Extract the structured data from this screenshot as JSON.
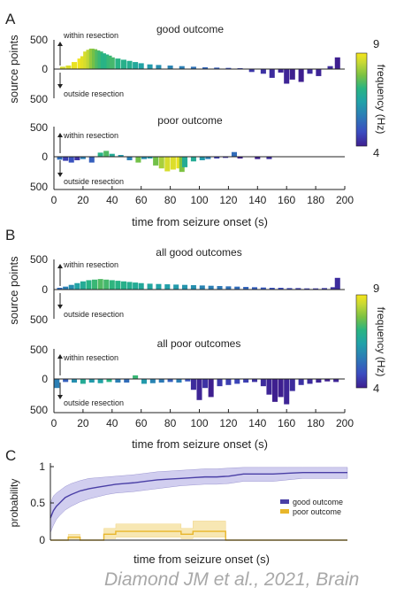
{
  "colors": {
    "viridis": [
      "#3e1f8f",
      "#3b4cc0",
      "#2c7bb6",
      "#21a2a8",
      "#29b482",
      "#7ac143",
      "#c8d935",
      "#f6e51a"
    ],
    "good_line": "#4a3fa6",
    "good_band": "#c9c5ec",
    "poor_line": "#e8b62b",
    "poor_band": "#f6e3a6",
    "axis": "#222222"
  },
  "panels": {
    "A": {
      "letter": "A",
      "xlabel": "time from seizure onset (s)",
      "ylabel": "source points",
      "xticks": [
        "0",
        "20",
        "40",
        "60",
        "80",
        "100",
        "120",
        "140",
        "160",
        "180",
        "200"
      ],
      "colorbar": {
        "label": "frequency (Hz)",
        "max": "9",
        "min": "4"
      }
    },
    "B": {
      "letter": "B",
      "xlabel": "time from seizure onset (s)",
      "ylabel": "source points",
      "xticks": [
        "0",
        "20",
        "40",
        "60",
        "80",
        "100",
        "120",
        "140",
        "160",
        "180",
        "200"
      ],
      "colorbar": {
        "label": "frequency (Hz)",
        "max": "9",
        "min": "4"
      }
    },
    "C": {
      "letter": "C",
      "xlabel": "time from seizure onset (s)",
      "ylabel": "probability",
      "yticks": [
        "0",
        "0.5",
        "1"
      ],
      "legend": [
        "good outcome",
        "poor outcome"
      ]
    }
  },
  "subplot_text": {
    "within": "within resection",
    "outside": "outside resection",
    "yticks": [
      "500",
      "0",
      "500"
    ]
  },
  "citation": "Diamond JM et al., 2021, Brain",
  "chart_data": [
    {
      "type": "bar",
      "panel": "A",
      "title": "good outcome",
      "xlabel": "time from seizure onset (s)",
      "ylabel": "source points",
      "xlim": [
        0,
        200
      ],
      "ylim": [
        -500,
        500
      ],
      "color_scale": {
        "label": "frequency (Hz)",
        "min": 4,
        "max": 9
      },
      "x": [
        6,
        10,
        14,
        18,
        20,
        22,
        24,
        26,
        28,
        30,
        32,
        34,
        36,
        38,
        40,
        44,
        48,
        52,
        56,
        60,
        66,
        72,
        80,
        88,
        96,
        104,
        112,
        120,
        128,
        136,
        144,
        150,
        156,
        160,
        164,
        170,
        176,
        182,
        190,
        195
      ],
      "y": [
        40,
        60,
        120,
        180,
        220,
        300,
        330,
        350,
        340,
        320,
        300,
        270,
        250,
        230,
        200,
        180,
        160,
        140,
        120,
        100,
        80,
        70,
        60,
        50,
        40,
        30,
        25,
        20,
        15,
        -50,
        -80,
        -150,
        -60,
        -250,
        -180,
        -220,
        -80,
        -120,
        50,
        200
      ],
      "freq": [
        8.5,
        8.6,
        8.8,
        8.9,
        8.7,
        8.5,
        8.2,
        7.8,
        7.5,
        7.2,
        7.0,
        6.8,
        6.8,
        7.0,
        7.1,
        6.8,
        6.7,
        6.6,
        6.4,
        6.2,
        6.0,
        5.8,
        5.6,
        5.5,
        5.3,
        5.1,
        5.0,
        4.8,
        4.6,
        4.4,
        4.3,
        4.2,
        4.1,
        4.1,
        4.0,
        4.0,
        4.2,
        4.1,
        4.2,
        4.0
      ]
    },
    {
      "type": "bar",
      "panel": "A",
      "title": "poor outcome",
      "xlabel": "time from seizure onset (s)",
      "ylabel": "source points",
      "xlim": [
        0,
        200
      ],
      "ylim": [
        -500,
        500
      ],
      "color_scale": {
        "label": "frequency (Hz)",
        "min": 4,
        "max": 9
      },
      "x": [
        4,
        8,
        12,
        16,
        20,
        26,
        32,
        36,
        40,
        46,
        52,
        58,
        62,
        66,
        70,
        74,
        78,
        82,
        86,
        88,
        90,
        96,
        102,
        106,
        112,
        118,
        124,
        128,
        140,
        148
      ],
      "y": [
        -50,
        -70,
        -100,
        -60,
        -40,
        -100,
        70,
        100,
        50,
        30,
        -60,
        -100,
        -40,
        -30,
        -150,
        -200,
        -250,
        -220,
        -200,
        -260,
        -180,
        -80,
        -60,
        -40,
        -30,
        -20,
        80,
        -30,
        -40,
        -40
      ],
      "freq": [
        5.2,
        4.5,
        4.8,
        4.3,
        5.5,
        5.0,
        6.8,
        7.2,
        6.5,
        6.0,
        5.5,
        7.5,
        5.8,
        6.0,
        7.5,
        8.0,
        8.5,
        8.6,
        8.8,
        7.6,
        6.5,
        6.5,
        6.0,
        5.5,
        4.5,
        4.3,
        5.2,
        4.0,
        4.0,
        4.2
      ]
    },
    {
      "type": "bar",
      "panel": "B",
      "title": "all good outcomes",
      "xlabel": "time from seizure onset (s)",
      "ylabel": "source points",
      "xlim": [
        0,
        200
      ],
      "ylim": [
        -500,
        500
      ],
      "color_scale": {
        "label": "frequency (Hz)",
        "min": 4,
        "max": 9
      },
      "x": [
        4,
        8,
        12,
        16,
        20,
        24,
        28,
        32,
        36,
        40,
        44,
        48,
        52,
        56,
        60,
        66,
        72,
        78,
        84,
        90,
        96,
        102,
        108,
        114,
        120,
        126,
        132,
        138,
        144,
        150,
        156,
        162,
        168,
        174,
        180,
        186,
        192,
        195
      ],
      "y": [
        30,
        50,
        80,
        110,
        140,
        160,
        170,
        180,
        170,
        160,
        150,
        140,
        130,
        120,
        110,
        100,
        95,
        90,
        85,
        80,
        75,
        70,
        65,
        60,
        55,
        50,
        45,
        40,
        35,
        30,
        30,
        25,
        25,
        20,
        20,
        25,
        40,
        200
      ],
      "freq": [
        5.2,
        5.5,
        5.8,
        6.2,
        6.5,
        6.8,
        7.0,
        7.2,
        7.1,
        6.9,
        6.8,
        6.7,
        6.6,
        6.5,
        6.4,
        6.3,
        6.2,
        6.1,
        6.0,
        5.9,
        5.8,
        5.6,
        5.5,
        5.4,
        5.3,
        5.2,
        5.1,
        5.0,
        4.9,
        4.8,
        4.7,
        4.6,
        4.5,
        4.5,
        4.4,
        4.4,
        4.3,
        4.2
      ]
    },
    {
      "type": "bar",
      "panel": "B",
      "title": "all poor outcomes",
      "xlabel": "time from seizure onset (s)",
      "ylabel": "source points",
      "xlim": [
        0,
        200
      ],
      "ylim": [
        -500,
        500
      ],
      "color_scale": {
        "label": "frequency (Hz)",
        "min": 4,
        "max": 9
      },
      "x": [
        2,
        8,
        14,
        20,
        26,
        32,
        38,
        44,
        50,
        56,
        62,
        68,
        74,
        80,
        86,
        92,
        96,
        100,
        104,
        108,
        114,
        120,
        126,
        132,
        138,
        144,
        148,
        152,
        156,
        160,
        164,
        170,
        176,
        182,
        188,
        194
      ],
      "y": [
        -150,
        -50,
        -60,
        -80,
        -60,
        -70,
        -50,
        -60,
        -60,
        60,
        -80,
        -70,
        -60,
        -50,
        -60,
        -40,
        -180,
        -350,
        -150,
        -300,
        -120,
        -100,
        -80,
        -60,
        -50,
        -120,
        -260,
        -380,
        -300,
        -420,
        -200,
        -100,
        -80,
        -60,
        -40,
        -50
      ],
      "freq": [
        5.5,
        5.0,
        5.8,
        6.5,
        6.0,
        6.2,
        6.8,
        5.5,
        5.2,
        7.0,
        6.0,
        5.6,
        5.4,
        5.0,
        5.5,
        4.8,
        4.2,
        4.1,
        4.3,
        4.0,
        4.4,
        4.5,
        4.6,
        4.5,
        4.3,
        4.2,
        4.1,
        4.0,
        4.0,
        4.1,
        4.2,
        4.3,
        4.2,
        4.1,
        4.0,
        4.1
      ]
    },
    {
      "type": "line",
      "panel": "C",
      "xlabel": "time from seizure onset (s)",
      "ylabel": "probability",
      "xlim": [
        0,
        200
      ],
      "ylim": [
        0,
        1
      ],
      "legend_position": "right",
      "series": [
        {
          "name": "good outcome",
          "x": [
            0,
            2,
            4,
            6,
            8,
            10,
            14,
            20,
            26,
            32,
            38,
            44,
            50,
            56,
            64,
            72,
            80,
            88,
            96,
            104,
            112,
            120,
            130,
            140,
            150,
            160,
            170,
            180,
            190,
            200
          ],
          "y": [
            0.3,
            0.4,
            0.46,
            0.5,
            0.54,
            0.58,
            0.62,
            0.67,
            0.7,
            0.72,
            0.74,
            0.76,
            0.77,
            0.78,
            0.8,
            0.82,
            0.83,
            0.84,
            0.85,
            0.86,
            0.86,
            0.87,
            0.9,
            0.9,
            0.9,
            0.91,
            0.92,
            0.92,
            0.92,
            0.92
          ],
          "lower": [
            0.1,
            0.2,
            0.28,
            0.33,
            0.37,
            0.41,
            0.46,
            0.52,
            0.56,
            0.59,
            0.62,
            0.64,
            0.65,
            0.66,
            0.68,
            0.7,
            0.72,
            0.74,
            0.75,
            0.76,
            0.76,
            0.77,
            0.8,
            0.8,
            0.8,
            0.82,
            0.84,
            0.84,
            0.84,
            0.84
          ],
          "upper": [
            0.5,
            0.6,
            0.64,
            0.67,
            0.7,
            0.73,
            0.77,
            0.81,
            0.84,
            0.85,
            0.86,
            0.87,
            0.88,
            0.89,
            0.91,
            0.93,
            0.94,
            0.95,
            0.96,
            0.97,
            0.97,
            0.98,
            0.99,
            0.99,
            0.99,
            0.99,
            0.99,
            0.99,
            0.99,
            0.99
          ]
        },
        {
          "name": "poor outcome",
          "x": [
            0,
            12,
            12,
            20,
            20,
            36,
            36,
            44,
            44,
            88,
            88,
            96,
            96,
            118,
            118,
            200
          ],
          "y": [
            0,
            0,
            0.04,
            0.04,
            0,
            0,
            0.08,
            0.08,
            0.12,
            0.12,
            0.08,
            0.08,
            0.12,
            0.12,
            0,
            0
          ],
          "lower": [
            0,
            0,
            0,
            0,
            0,
            0,
            0.02,
            0.02,
            0.04,
            0.04,
            0.02,
            0.02,
            0.04,
            0.04,
            0,
            0
          ],
          "upper": [
            0,
            0,
            0.08,
            0.08,
            0,
            0,
            0.16,
            0.16,
            0.22,
            0.22,
            0.16,
            0.16,
            0.26,
            0.26,
            0,
            0
          ]
        }
      ]
    }
  ]
}
